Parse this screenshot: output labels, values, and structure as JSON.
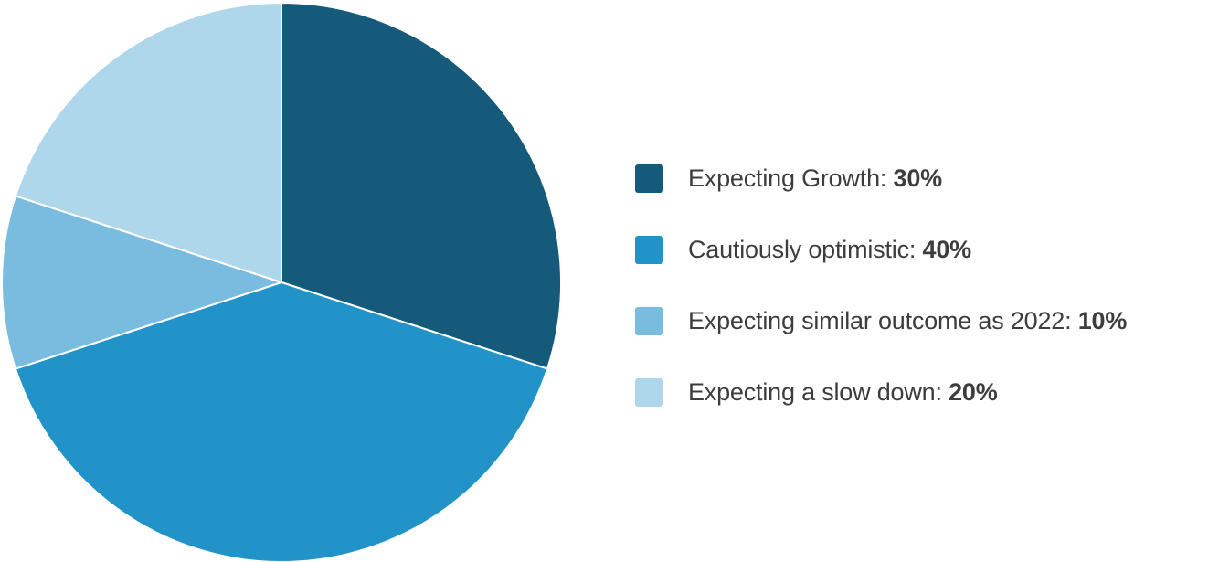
{
  "chart_data": {
    "type": "pie",
    "categories": [
      "Expecting Growth",
      "Cautiously optimistic",
      "Expecting similar outcome as 2022",
      "Expecting a slow down"
    ],
    "values": [
      30,
      40,
      10,
      20
    ],
    "value_labels": [
      "30%",
      "40%",
      "10%",
      "20%"
    ],
    "colors": [
      "#155a7a",
      "#2193c9",
      "#79bcdf",
      "#afd7ec"
    ],
    "start_angle_deg": 0,
    "direction": "clockwise",
    "legend_position": "right",
    "title": ""
  },
  "legend": {
    "items": [
      {
        "label": "Expecting Growth:",
        "value": "30%"
      },
      {
        "label": "Cautiously optimistic:",
        "value": "40%"
      },
      {
        "label": "Expecting similar outcome as 2022:",
        "value": "10%"
      },
      {
        "label": "Expecting a slow down:",
        "value": "20%"
      }
    ]
  }
}
